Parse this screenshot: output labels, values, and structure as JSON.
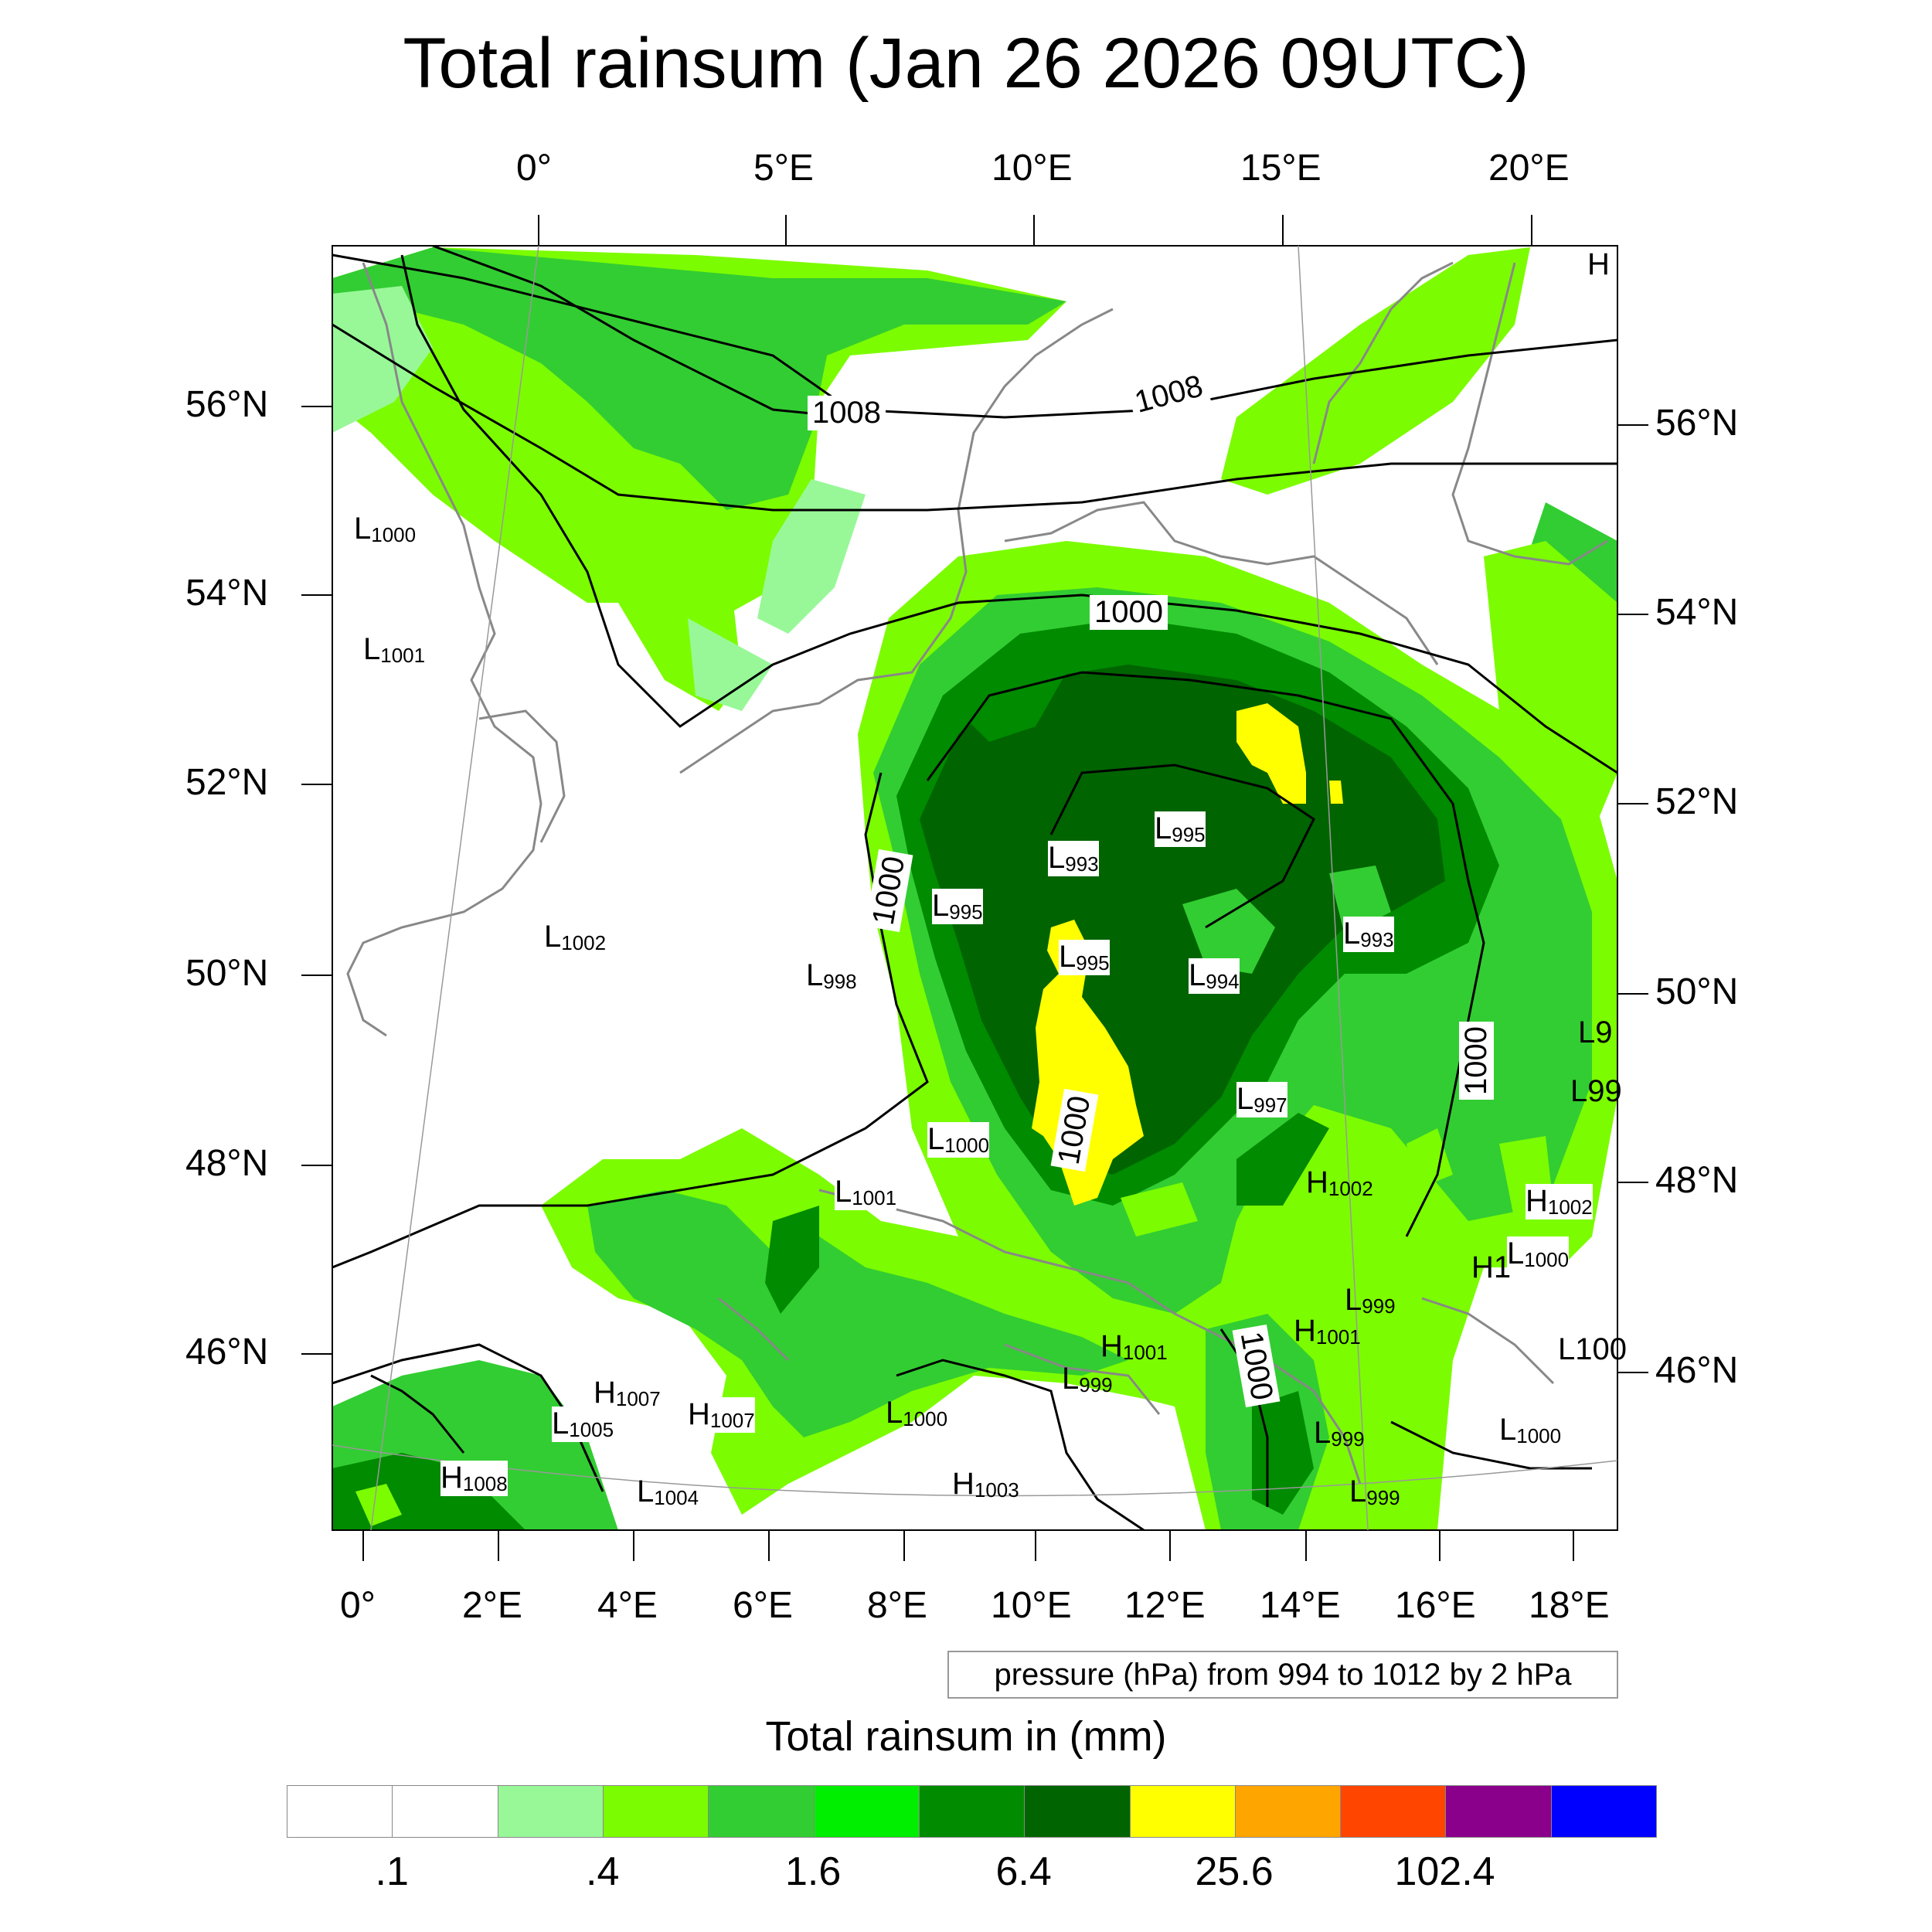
{
  "title": "Total rainsum (Jan 26 2026 09UTC)",
  "top_longitudes": [
    "0°",
    "5°E",
    "10°E",
    "15°E",
    "20°E"
  ],
  "bottom_longitudes": [
    "0°",
    "2°E",
    "4°E",
    "6°E",
    "8°E",
    "10°E",
    "12°E",
    "14°E",
    "16°E",
    "18°E"
  ],
  "left_latitudes": [
    "56°N",
    "54°N",
    "52°N",
    "50°N",
    "48°N",
    "46°N"
  ],
  "right_latitudes": [
    "56°N",
    "54°N",
    "52°N",
    "50°N",
    "48°N",
    "46°N"
  ],
  "contour_labels": {
    "1008_a": "1008",
    "1008_b": "1008",
    "1000_a": "1000",
    "1000_b": "1000",
    "1000_c": "1000",
    "1000_d": "1000",
    "1000_e": "1000"
  },
  "pressure_centers": [
    {
      "letter": "L",
      "value": "1000"
    },
    {
      "letter": "L",
      "value": "1001"
    },
    {
      "letter": "L",
      "value": "1002"
    },
    {
      "letter": "L",
      "value": "998"
    },
    {
      "letter": "L",
      "value": "995"
    },
    {
      "letter": "L",
      "value": "993"
    },
    {
      "letter": "L",
      "value": "995"
    },
    {
      "letter": "L",
      "value": "995"
    },
    {
      "letter": "L",
      "value": "994"
    },
    {
      "letter": "L",
      "value": "993"
    },
    {
      "letter": "L",
      "value": "997"
    },
    {
      "letter": "L",
      "value": "1000"
    },
    {
      "letter": "L",
      "value": "1001"
    },
    {
      "letter": "H",
      "value": "1002"
    },
    {
      "letter": "H",
      "value": "1002"
    },
    {
      "letter": "L",
      "value": "1000"
    },
    {
      "letter": "L",
      "value": "999"
    },
    {
      "letter": "H",
      "value": "1001"
    },
    {
      "letter": "H",
      "value": "1001"
    },
    {
      "letter": "L",
      "value": "999"
    },
    {
      "letter": "L",
      "value": "1000"
    },
    {
      "letter": "H",
      "value": "1007"
    },
    {
      "letter": "H",
      "value": "1007"
    },
    {
      "letter": "L",
      "value": "1005"
    },
    {
      "letter": "H",
      "value": "1008"
    },
    {
      "letter": "L",
      "value": "1004"
    },
    {
      "letter": "H",
      "value": "1003"
    },
    {
      "letter": "L",
      "value": "999"
    },
    {
      "letter": "L",
      "value": "999"
    },
    {
      "letter": "L",
      "value": "1000"
    }
  ],
  "corner_marks": {
    "h_top_right": "H",
    "l_right_1": "L9",
    "l_right_2": "L99",
    "h_right": "H1",
    "l_right_3": "L100"
  },
  "pressure_note": "pressure (hPa) from 994 to 1012 by 2 hPa",
  "colorbar": {
    "title": "Total rainsum in (mm)",
    "colors": [
      "#ffffff",
      "#ffffff",
      "#98f898",
      "#7cfc00",
      "#32cd32",
      "#00ee00",
      "#008b00",
      "#006400",
      "#ffff00",
      "#ffa500",
      "#ff4500",
      "#8b008b",
      "#0000ff"
    ],
    "labels": [
      ".1",
      ".4",
      "1.6",
      "6.4",
      "25.6",
      "102.4"
    ]
  }
}
